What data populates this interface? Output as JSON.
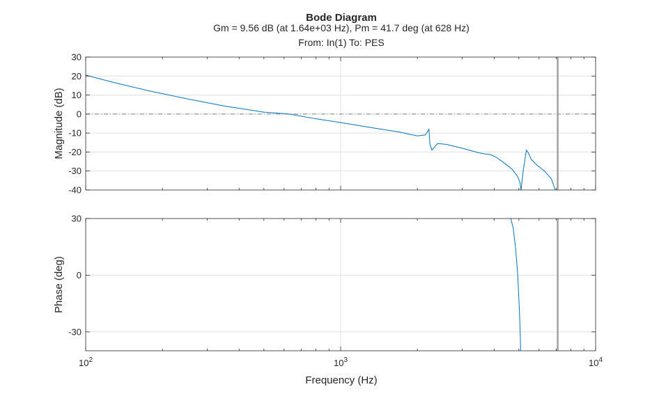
{
  "title": "Bode Diagram",
  "subtitle": "Gm = 9.56 dB (at 1.64e+03 Hz),  Pm = 41.7 deg (at 628 Hz)",
  "io_label": "From: In(1)  To: PES",
  "xlabel": "Frequency (Hz)",
  "x_ticks": [
    {
      "value": 100,
      "base": "10",
      "exp": "2"
    },
    {
      "value": 1000,
      "base": "10",
      "exp": "3"
    },
    {
      "value": 10000,
      "base": "10",
      "exp": "4"
    }
  ],
  "colors": {
    "series": "#0072BD",
    "grid": "#dfdfdf",
    "axes": "#262626",
    "zero_line": "#808080",
    "marker": "#a0a0a0"
  },
  "chart_data": [
    {
      "type": "line",
      "ylabel": "Magnitude (dB)",
      "xscale": "log",
      "xlim": [
        100,
        10000
      ],
      "ylim": [
        -40,
        30
      ],
      "y_ticks": [
        30,
        20,
        10,
        0,
        -10,
        -20,
        -30,
        -40
      ],
      "y_tick_labels": [
        "30",
        "20",
        "10",
        "0",
        "-10",
        "-20",
        "-30",
        "-40"
      ],
      "grid": true,
      "reference_line_y": 0,
      "vertical_marker_x": 7100,
      "series": [
        {
          "x": [
            100,
            130,
            180,
            250,
            350,
            500,
            628,
            800,
            1000,
            1300,
            1700,
            2000,
            2150,
            2220,
            2240,
            2280,
            2400,
            2600,
            3000,
            3500,
            3900,
            4100,
            4400,
            4700,
            4950,
            5050,
            5100,
            5200,
            5350,
            5450,
            5600,
            5900,
            6300,
            6700,
            6950
          ],
          "y": [
            20.5,
            16.5,
            12.0,
            8.0,
            4.2,
            1.0,
            0.0,
            -2.5,
            -4.5,
            -7.0,
            -9.5,
            -11.5,
            -11.0,
            -8.0,
            -16.0,
            -19.0,
            -15.5,
            -16.0,
            -18.0,
            -20.5,
            -21.5,
            -23.0,
            -26.0,
            -29.0,
            -33.0,
            -36.0,
            -40.0,
            -30.0,
            -19.0,
            -20.5,
            -24.0,
            -27.0,
            -30.0,
            -34.0,
            -40.0
          ]
        }
      ]
    },
    {
      "type": "line",
      "ylabel": "Phase (deg)",
      "xscale": "log",
      "xlim": [
        100,
        10000
      ],
      "ylim": [
        -40,
        30
      ],
      "y_ticks": [
        30,
        0,
        -30
      ],
      "y_tick_labels": [
        "30",
        "0",
        "-30"
      ],
      "grid": true,
      "vertical_marker_x": 7100,
      "series": [
        {
          "x": [
            4650,
            4750,
            4850,
            4950,
            5030,
            5070,
            5080
          ],
          "y": [
            30,
            25,
            15,
            0,
            -20,
            -34,
            -40
          ]
        }
      ]
    }
  ]
}
